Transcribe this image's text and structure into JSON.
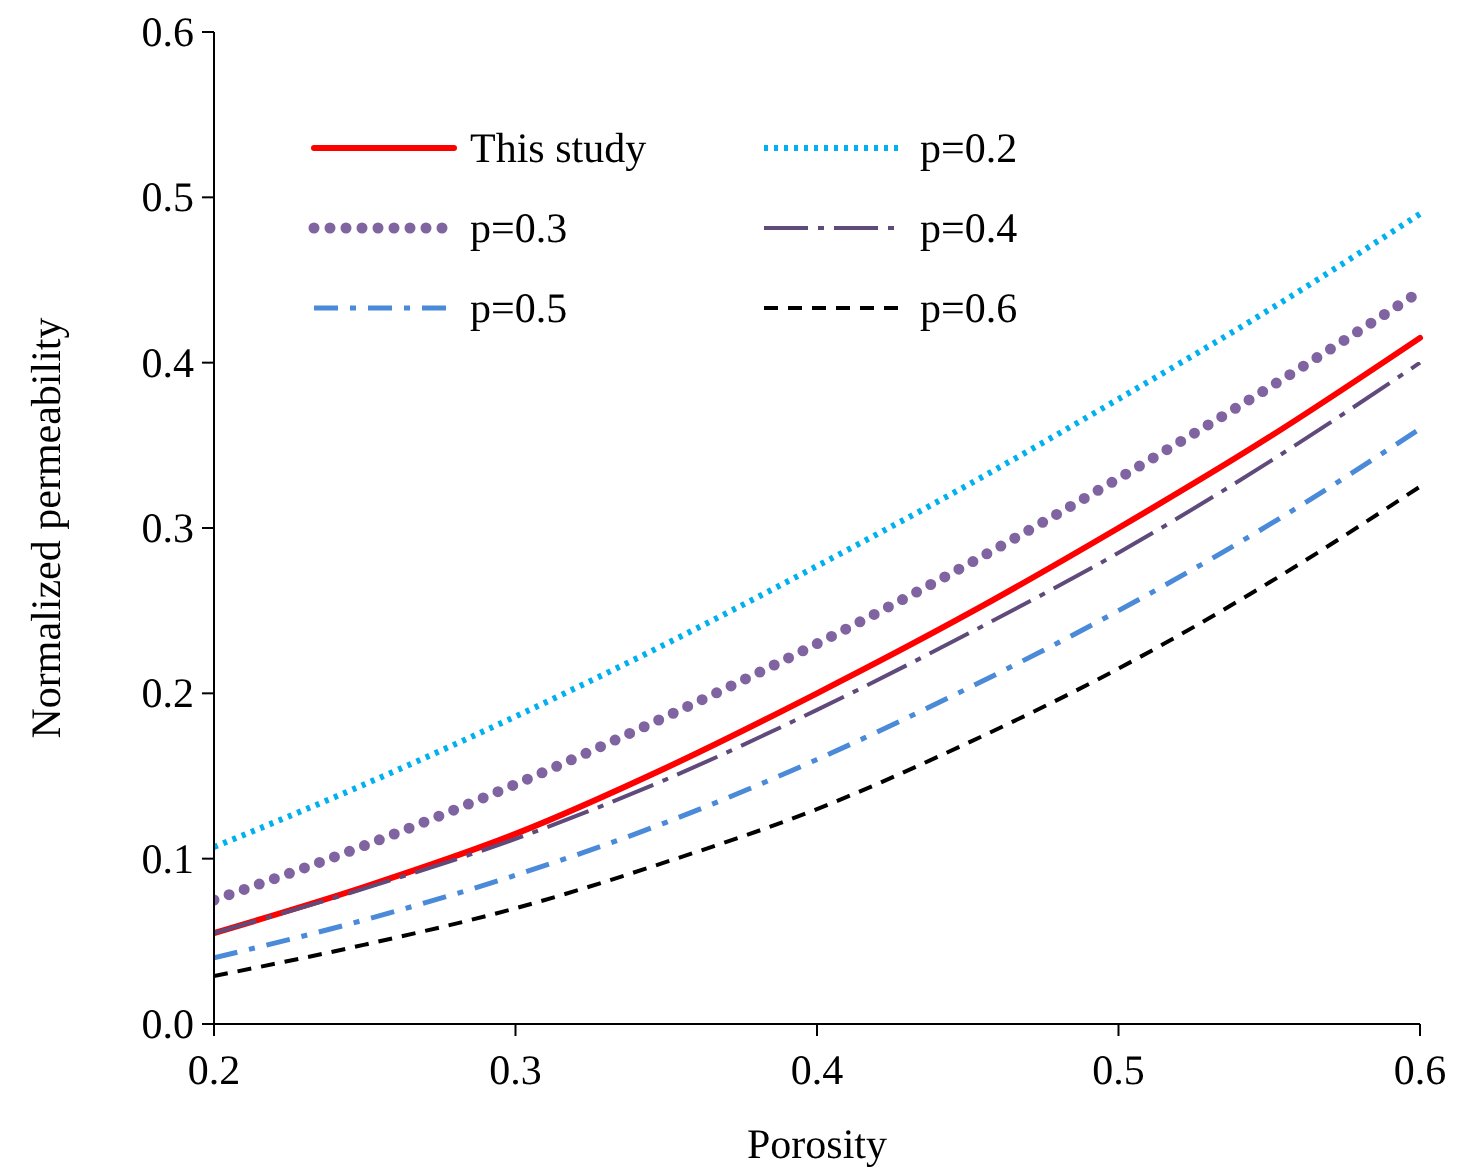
{
  "chart_data": {
    "type": "line",
    "xlabel": "Porosity",
    "ylabel": "Normalized permeability",
    "xlim": [
      0.2,
      0.6
    ],
    "ylim": [
      0,
      0.6
    ],
    "xticks": [
      {
        "value": 0.2,
        "label": "0.2"
      },
      {
        "value": 0.3,
        "label": "0.3"
      },
      {
        "value": 0.4,
        "label": "0.4"
      },
      {
        "value": 0.5,
        "label": "0.5"
      },
      {
        "value": 0.6,
        "label": "0.6"
      }
    ],
    "yticks": [
      {
        "value": 0,
        "label": "0.0"
      },
      {
        "value": 0.1,
        "label": "0.1"
      },
      {
        "value": 0.2,
        "label": "0.2"
      },
      {
        "value": 0.3,
        "label": "0.3"
      },
      {
        "value": 0.4,
        "label": "0.4"
      },
      {
        "value": 0.5,
        "label": "0.5"
      },
      {
        "value": 0.6,
        "label": "0.6"
      }
    ],
    "grid": false,
    "legend": "top left",
    "x": [
      0.2,
      0.25,
      0.3,
      0.35,
      0.4,
      0.45,
      0.5,
      0.55,
      0.6
    ],
    "series": [
      {
        "name": "This study",
        "color": "#ff0000",
        "line_style": "solid",
        "values": [
          0.055,
          0.083,
          0.115,
          0.155,
          0.2,
          0.248,
          0.3,
          0.355,
          0.415
        ]
      },
      {
        "name": "p=0.2",
        "color": "#00b0f0",
        "line_style": "dotted",
        "values": [
          0.107,
          0.145,
          0.186,
          0.23,
          0.277,
          0.326,
          0.378,
          0.432,
          0.49
        ]
      },
      {
        "name": "p=0.3",
        "color": "#8064a2",
        "line_style": "dotted",
        "values": [
          0.075,
          0.108,
          0.145,
          0.186,
          0.23,
          0.278,
          0.33,
          0.385,
          0.443
        ]
      },
      {
        "name": "p=0.4",
        "color": "#604a7b",
        "line_style": "dashdot",
        "values": [
          0.055,
          0.082,
          0.112,
          0.148,
          0.19,
          0.236,
          0.285,
          0.34,
          0.4
        ]
      },
      {
        "name": "p=0.5",
        "color": "#4a8ad8",
        "line_style": "dashdot",
        "values": [
          0.04,
          0.063,
          0.09,
          0.122,
          0.16,
          0.203,
          0.25,
          0.302,
          0.36
        ]
      },
      {
        "name": "p=0.6",
        "color": "#000000",
        "line_style": "dashed",
        "values": [
          0.029,
          0.048,
          0.07,
          0.098,
          0.13,
          0.17,
          0.215,
          0.267,
          0.325
        ]
      }
    ]
  }
}
